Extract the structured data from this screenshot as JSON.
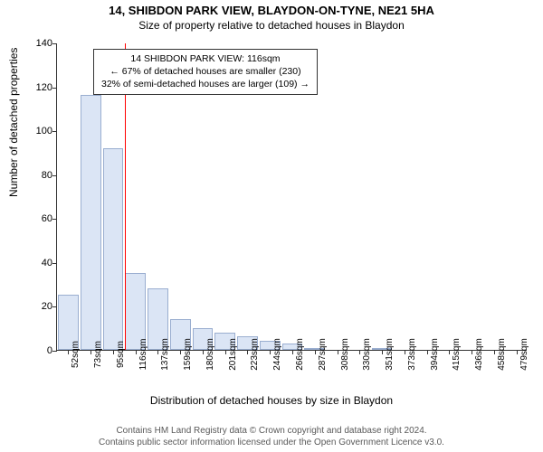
{
  "titles": {
    "address": "14, SHIBDON PARK VIEW, BLAYDON-ON-TYNE, NE21 5HA",
    "subtitle": "Size of property relative to detached houses in Blaydon"
  },
  "axes": {
    "ylabel": "Number of detached properties",
    "xlabel": "Distribution of detached houses by size in Blaydon",
    "ymax": 140,
    "yticks": [
      0,
      20,
      40,
      60,
      80,
      100,
      120,
      140
    ]
  },
  "bars": {
    "labels": [
      "52sqm",
      "73sqm",
      "95sqm",
      "116sqm",
      "137sqm",
      "159sqm",
      "180sqm",
      "201sqm",
      "223sqm",
      "244sqm",
      "266sqm",
      "287sqm",
      "308sqm",
      "330sqm",
      "351sqm",
      "373sqm",
      "394sqm",
      "415sqm",
      "436sqm",
      "458sqm",
      "479sqm"
    ],
    "values": [
      25,
      116,
      92,
      35,
      28,
      14,
      10,
      8,
      6,
      4,
      3,
      1,
      0,
      0,
      1,
      0,
      0,
      0,
      0,
      0,
      0
    ],
    "fill": "#dbe5f5",
    "stroke": "#9aaed0",
    "width_ratio": 0.92
  },
  "marker": {
    "index": 3,
    "color": "#ff0000"
  },
  "annotation": {
    "line1": "14 SHIBDON PARK VIEW: 116sqm",
    "line2": "← 67% of detached houses are smaller (230)",
    "line3": "32% of semi-detached houses are larger (109) →",
    "border": "#333333"
  },
  "footer": {
    "l1": "Contains HM Land Registry data © Crown copyright and database right 2024.",
    "l2": "Contains public sector information licensed under the Open Government Licence v3.0."
  },
  "style": {
    "title_fontsize": 13,
    "subtitle_fontsize": 12,
    "axis_label_fontsize": 12,
    "tick_fontsize": 11,
    "xtick_fontsize": 10,
    "footer_fontsize": 10
  }
}
